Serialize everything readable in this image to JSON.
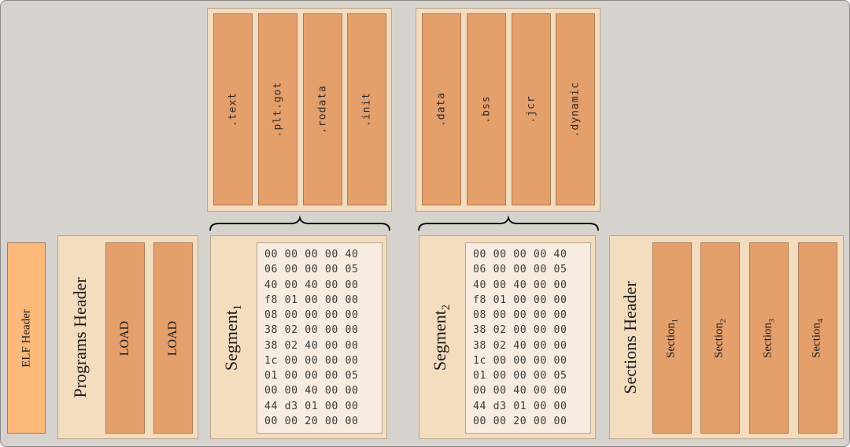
{
  "elf_header": {
    "label": "ELF Header"
  },
  "programs_header": {
    "title": "Programs Header",
    "entries": [
      "LOAD",
      "LOAD"
    ]
  },
  "segments": [
    {
      "title": "Segment",
      "subscript": "1",
      "sections": [
        ".text",
        ".plt.got",
        ".rodata",
        ".init"
      ],
      "hex_rows": [
        "00 00 00 00 40",
        "06 00 00 00 05",
        "40 00 40 00 00",
        "f8 01 00 00 00",
        "08 00 00 00 00",
        "38 02 00 00 00",
        "38 02 40 00 00",
        "1c 00 00 00 00",
        "01 00 00 00 05",
        "00 00 40 00 00",
        "44 d3 01 00 00",
        "00 00 20 00 00"
      ]
    },
    {
      "title": "Segment",
      "subscript": "2",
      "sections": [
        ".data",
        ".bss",
        ".jcr",
        ".dynamic"
      ],
      "hex_rows": [
        "00 00 00 00 40",
        "06 00 00 00 05",
        "40 00 40 00 00",
        "f8 01 00 00 00",
        "08 00 00 00 00",
        "38 02 00 00 00",
        "38 02 40 00 00",
        "1c 00 00 00 00",
        "01 00 00 00 05",
        "00 00 40 00 00",
        "44 d3 01 00 00",
        "00 00 20 00 00"
      ]
    }
  ],
  "sections_header": {
    "title": "Sections Header",
    "entries": [
      {
        "label": "Section",
        "subscript": "1"
      },
      {
        "label": "Section",
        "subscript": "2"
      },
      {
        "label": "Section",
        "subscript": "3"
      },
      {
        "label": "Section",
        "subscript": "4"
      }
    ]
  },
  "colors": {
    "background": "#d6d2ce",
    "panel": "#f4dcbf",
    "bar": "#e49f6b",
    "elf_header": "#fdb87b"
  }
}
